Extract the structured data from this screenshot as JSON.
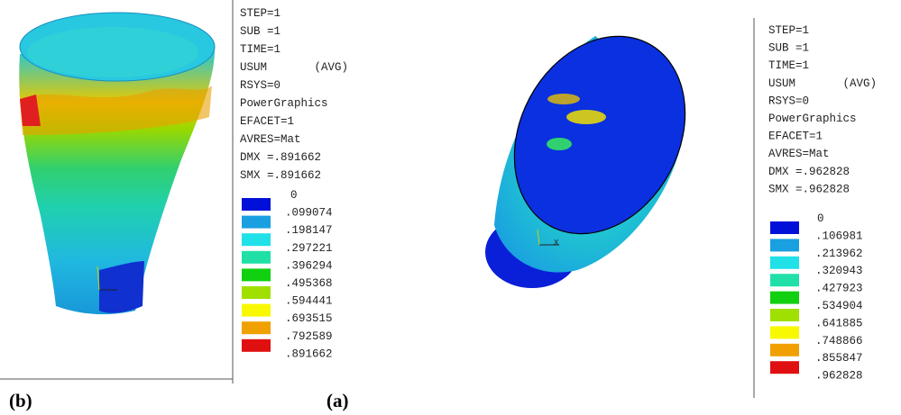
{
  "panels": [
    {
      "info": [
        "STEP=1",
        "SUB =1",
        "TIME=1",
        "USUM       (AVG)",
        "RSYS=0",
        "PowerGraphics",
        "EFACET=1",
        "AVRES=Mat",
        "DMX =.891662",
        "SMX =.891662"
      ],
      "legend": [
        "0",
        ".099074",
        ".198147",
        ".297221",
        ".396294",
        ".495368",
        ".594441",
        ".693515",
        ".792589",
        ".891662"
      ]
    },
    {
      "info": [
        "STEP=1",
        "SUB =1",
        "TIME=1",
        "USUM       (AVG)",
        "RSYS=0",
        "PowerGraphics",
        "EFACET=1",
        "AVRES=Mat",
        "DMX =.962828",
        "SMX =.962828"
      ],
      "legend": [
        "0",
        ".106981",
        ".213962",
        ".320943",
        ".427923",
        ".534904",
        ".641885",
        ".748866",
        ".855847",
        ".962828"
      ]
    }
  ],
  "labels": [
    "(b)",
    "(a)"
  ],
  "axis_label": "X"
}
